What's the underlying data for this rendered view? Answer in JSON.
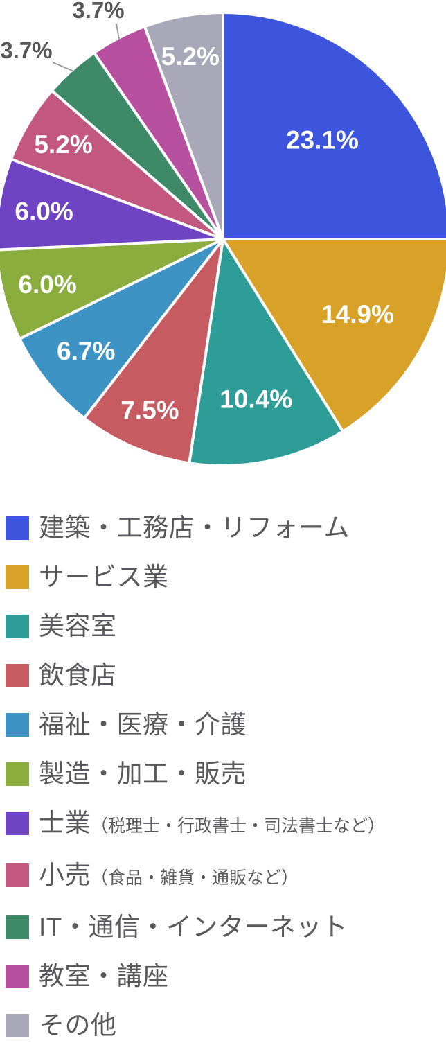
{
  "chart_data": {
    "type": "pie",
    "title": "",
    "legend_position": "bottom-left",
    "value_suffix": "%",
    "slices": [
      {
        "label": "建築・工務店・リフォーム",
        "sub_label": "",
        "value": 23.1,
        "display": "23.1%",
        "color": "#3D55DC",
        "label_placement": "inside"
      },
      {
        "label": "サービス業",
        "sub_label": "",
        "value": 14.9,
        "display": "14.9%",
        "color": "#D8A228",
        "label_placement": "inside"
      },
      {
        "label": "美容室",
        "sub_label": "",
        "value": 10.4,
        "display": "10.4%",
        "color": "#2F9D97",
        "label_placement": "inside"
      },
      {
        "label": "飲食店",
        "sub_label": "",
        "value": 7.5,
        "display": "7.5%",
        "color": "#C75B62",
        "label_placement": "inside"
      },
      {
        "label": "福祉・医療・介護",
        "sub_label": "",
        "value": 6.7,
        "display": "6.7%",
        "color": "#3E93C5",
        "label_placement": "inside"
      },
      {
        "label": "製造・加工・販売",
        "sub_label": "",
        "value": 6.0,
        "display": "6.0%",
        "color": "#8BAD3E",
        "label_placement": "inside"
      },
      {
        "label": "士業",
        "sub_label": "（税理士・行政書士・司法書士など）",
        "value": 6.0,
        "display": "6.0%",
        "color": "#6F44C4",
        "label_placement": "inside"
      },
      {
        "label": "小売",
        "sub_label": "（食品・雑貨・通販など）",
        "value": 5.2,
        "display": "5.2%",
        "color": "#C2587E",
        "label_placement": "inside"
      },
      {
        "label": "IT・通信・インターネット",
        "sub_label": "",
        "value": 3.7,
        "display": "3.7%",
        "color": "#3E8A68",
        "label_placement": "outside"
      },
      {
        "label": "教室・講座",
        "sub_label": "",
        "value": 3.7,
        "display": "3.7%",
        "color": "#B7509E",
        "label_placement": "outside"
      },
      {
        "label": "その他",
        "sub_label": "",
        "value": 5.2,
        "display": "5.2%",
        "color": "#A8A8B8",
        "label_placement": "inside"
      }
    ]
  }
}
